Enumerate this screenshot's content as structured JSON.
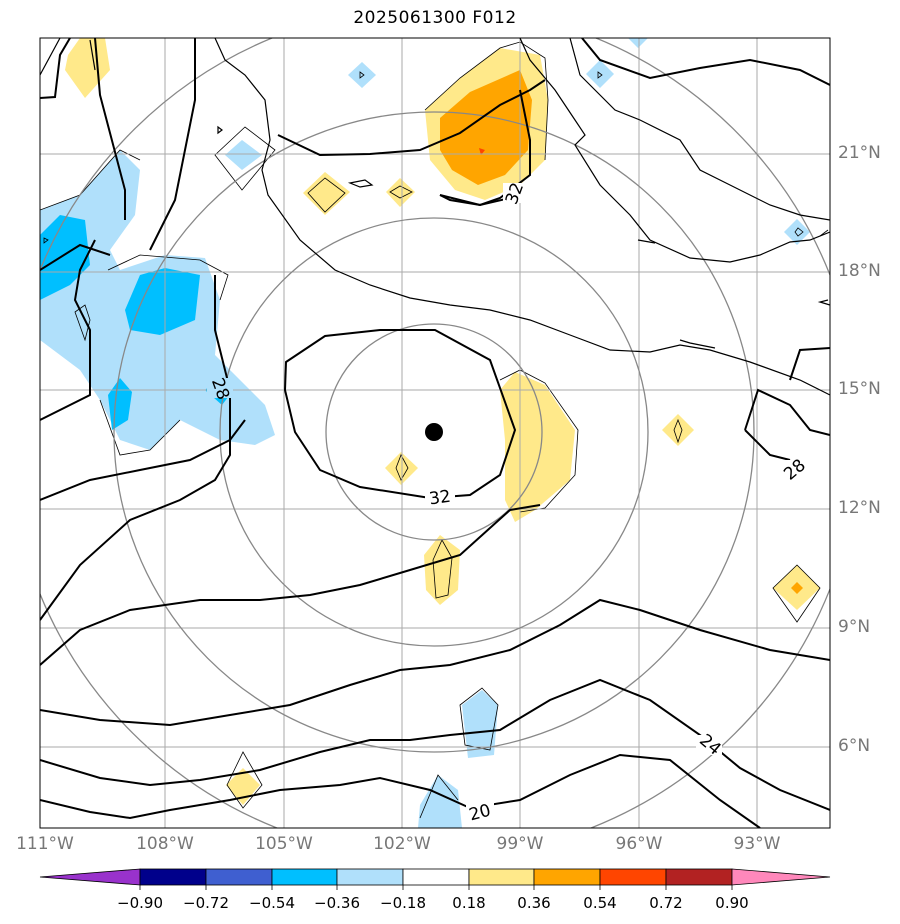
{
  "title": "2025061300 F012",
  "lat_labels": [
    "21°N",
    "18°N",
    "15°N",
    "12°N",
    "9°N",
    "6°N"
  ],
  "lon_labels": [
    "111°W",
    "108°W",
    "105°W",
    "102°W",
    "99°W",
    "96°W",
    "93°W"
  ],
  "contour_labels": [
    "32",
    "28",
    "32",
    "28",
    "24",
    "20"
  ],
  "colorbar": {
    "ticks": [
      "−0.90",
      "−0.72",
      "−0.54",
      "−0.36",
      "−0.18",
      "0.18",
      "0.36",
      "0.54",
      "0.72",
      "0.90"
    ],
    "colors": [
      "#9932cc",
      "#00008b",
      "#3f5fd0",
      "#00bfff",
      "#b0e0fb",
      "#ffffff",
      "#ffe98a",
      "#ffa500",
      "#ff4500",
      "#b22222",
      "#ff88bb"
    ]
  },
  "colors": {
    "grid": "#aaaaaa",
    "range_rings": "#888888",
    "contour": "#000000",
    "center_marker": "#000000"
  }
}
